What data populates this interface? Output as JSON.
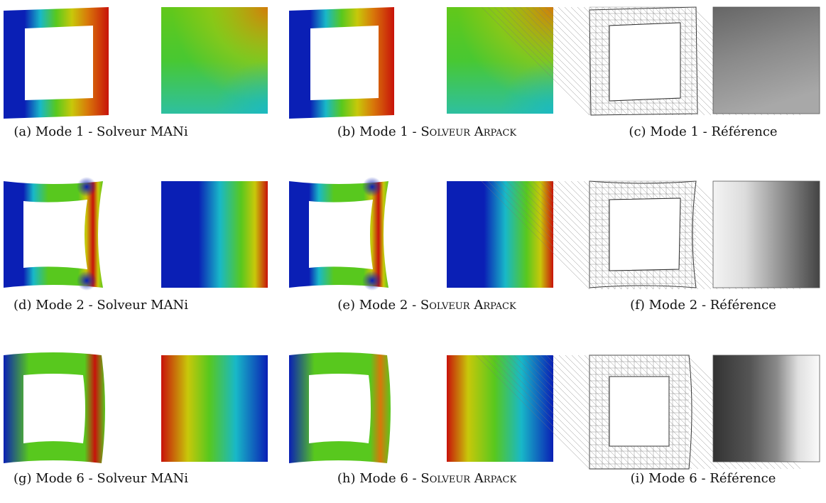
{
  "figure": {
    "panels": [
      {
        "id": "a",
        "label": "(a)",
        "mode": "Mode 1",
        "source": "Solveur MANi",
        "kind": "mani",
        "mode_num": 1
      },
      {
        "id": "b",
        "label": "(b)",
        "mode": "Mode 1",
        "source": "Solveur Arpack",
        "kind": "arpack",
        "mode_num": 1
      },
      {
        "id": "c",
        "label": "(c)",
        "mode": "Mode 1",
        "source": "Référence",
        "kind": "ref",
        "mode_num": 1
      },
      {
        "id": "d",
        "label": "(d)",
        "mode": "Mode 2",
        "source": "Solveur MANi",
        "kind": "mani",
        "mode_num": 2
      },
      {
        "id": "e",
        "label": "(e)",
        "mode": "Mode 2",
        "source": "Solveur Arpack",
        "kind": "arpack",
        "mode_num": 2
      },
      {
        "id": "f",
        "label": "(f)",
        "mode": "Mode 2",
        "source": "Référence",
        "kind": "ref",
        "mode_num": 2
      },
      {
        "id": "g",
        "label": "(g)",
        "mode": "Mode 6",
        "source": "Solveur MANi",
        "kind": "mani",
        "mode_num": 6
      },
      {
        "id": "h",
        "label": "(h)",
        "mode": "Mode 6",
        "source": "Solveur Arpack",
        "kind": "arpack",
        "mode_num": 6
      },
      {
        "id": "i",
        "label": "(i)",
        "mode": "Mode 6",
        "source": "Référence",
        "kind": "ref",
        "mode_num": 6
      }
    ],
    "separator": " - ",
    "colors": {
      "blue": "#0a1fb5",
      "cyan": "#18b8c8",
      "green": "#58c81e",
      "yellow": "#c8c80a",
      "orange": "#d8780a",
      "red": "#c8120a"
    }
  }
}
